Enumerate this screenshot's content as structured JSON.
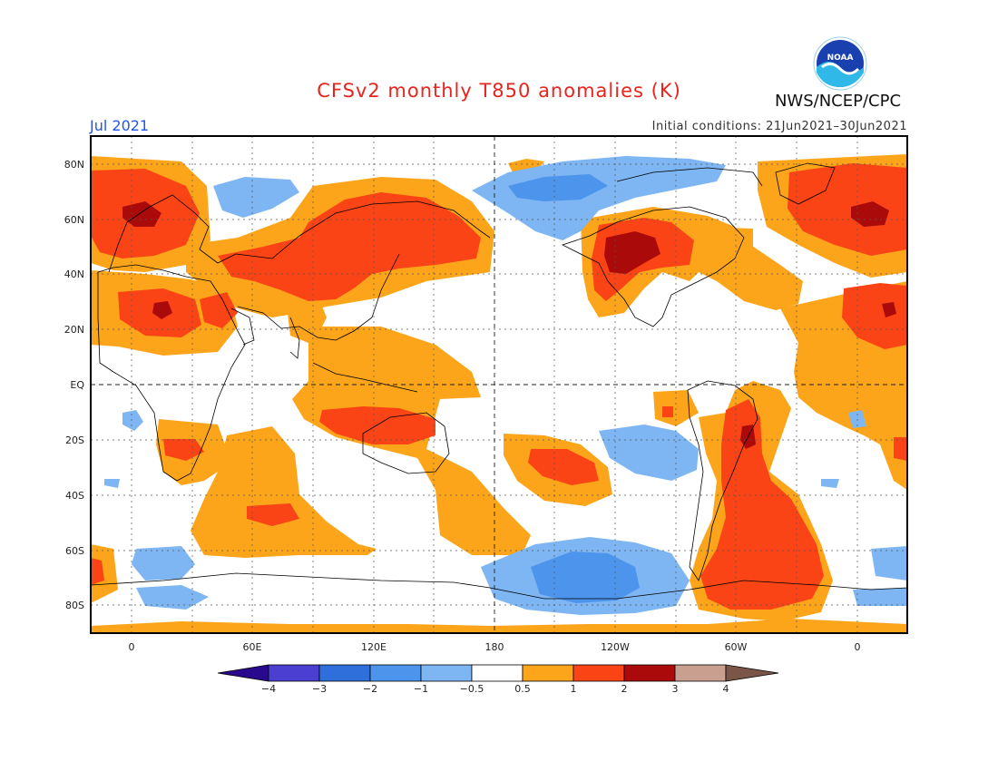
{
  "header": {
    "title": "CFSv2 monthly T850 anomalies (K)",
    "period": "Jul 2021",
    "initial_conditions": "Initial conditions: 21Jun2021–30Jun2021",
    "agency": "NWS/NCEP/CPC",
    "logo_text": "NOAA"
  },
  "map": {
    "projection": "cylindrical equidistant",
    "longitude_range": [
      -20,
      380
    ],
    "latitude_range": [
      -90,
      90
    ],
    "grid": true,
    "lat_labels": [
      "80N",
      "60N",
      "40N",
      "20N",
      "EQ",
      "20S",
      "40S",
      "60S",
      "80S"
    ],
    "lon_labels": [
      "0",
      "60E",
      "120E",
      "180",
      "120W",
      "60W",
      "0"
    ]
  },
  "legend": {
    "levels": [
      "−4",
      "−3",
      "−2",
      "−1",
      "−0.5",
      "0.5",
      "1",
      "2",
      "3",
      "4"
    ],
    "colors": [
      "#2a0a8c",
      "#4a3fd0",
      "#2e6fdc",
      "#4c94ec",
      "#7db6f2",
      "#ffffff",
      "#fca51a",
      "#fa4416",
      "#aa0a0a",
      "#c9a090",
      "#7a5648"
    ]
  },
  "colors": {
    "warm_weak": "#fca51a",
    "warm_mod": "#fa4416",
    "warm_strong": "#aa0a0a",
    "cool_weak": "#7db6f2",
    "cool_mod": "#4c94ec",
    "title": "#e8241c",
    "period": "#2255ee"
  }
}
